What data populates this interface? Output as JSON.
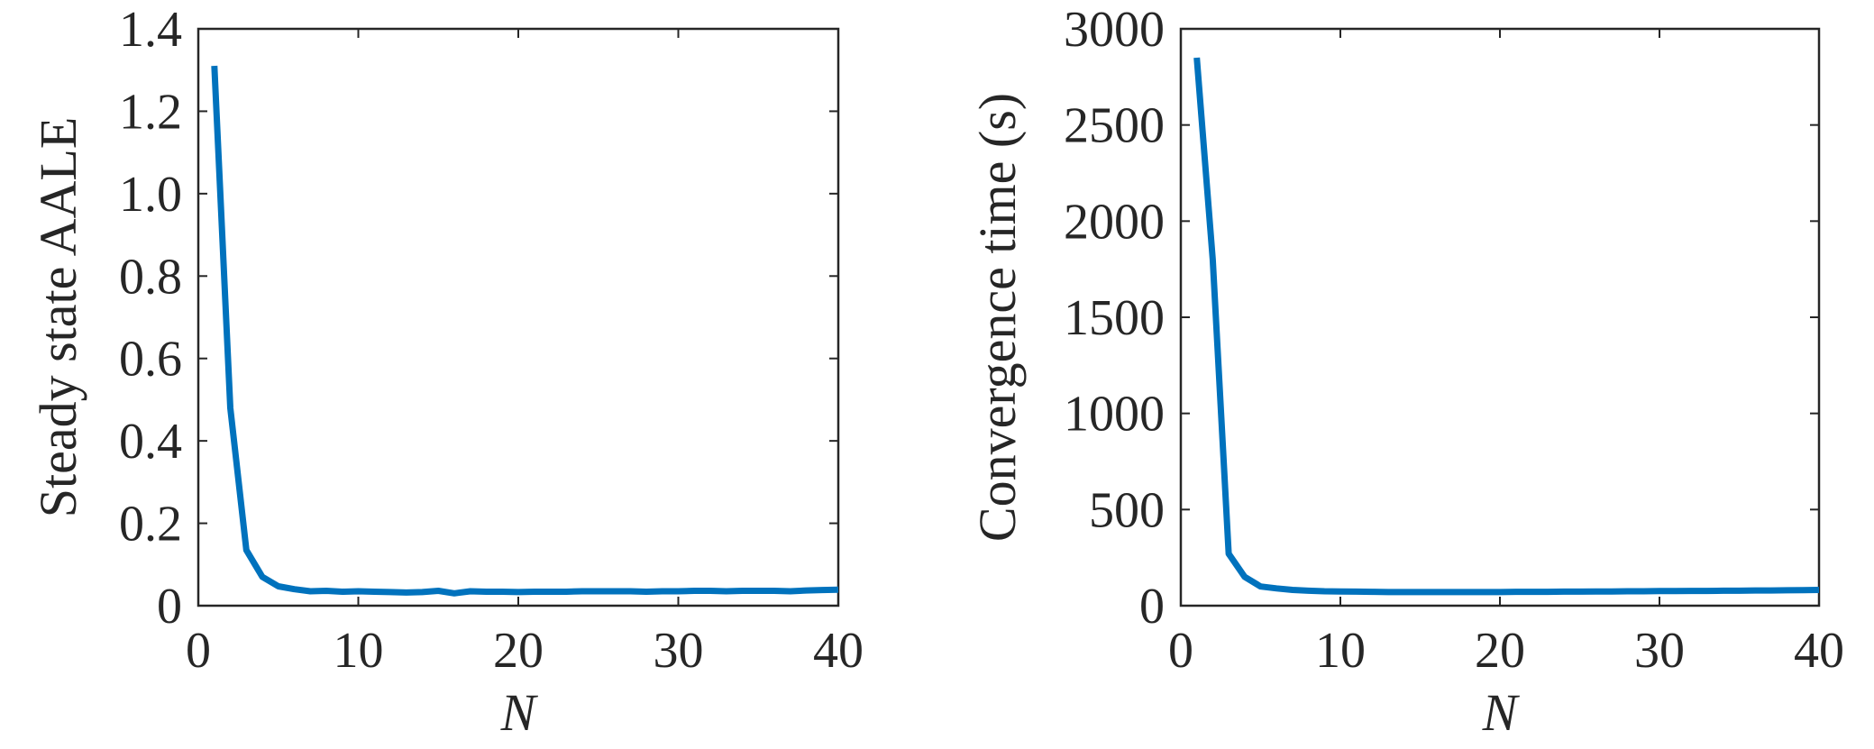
{
  "chart_data": [
    {
      "type": "line",
      "title": "",
      "xlabel": "N",
      "ylabel": "Steady state AALE",
      "xlim": [
        0,
        40
      ],
      "ylim": [
        0,
        1.4
      ],
      "xticks": [
        0,
        10,
        20,
        30,
        40
      ],
      "xtick_labels": [
        "0",
        "10",
        "20",
        "30",
        "40"
      ],
      "yticks": [
        0,
        0.2,
        0.4,
        0.6,
        0.8,
        1.0,
        1.2,
        1.4
      ],
      "ytick_labels": [
        "0",
        "0.2",
        "0.4",
        "0.6",
        "0.8",
        "1.0",
        "1.2",
        "1.4"
      ],
      "grid": false,
      "line_color": "#0072BD",
      "series": [
        {
          "x": [
            1,
            2,
            3,
            4,
            5,
            6,
            7,
            8,
            9,
            10,
            11,
            12,
            13,
            14,
            15,
            16,
            17,
            18,
            19,
            20,
            21,
            22,
            23,
            24,
            25,
            26,
            27,
            28,
            29,
            30,
            31,
            32,
            33,
            34,
            35,
            36,
            37,
            38,
            39,
            40
          ],
          "y": [
            1.31,
            0.48,
            0.135,
            0.07,
            0.047,
            0.04,
            0.035,
            0.036,
            0.034,
            0.035,
            0.034,
            0.033,
            0.032,
            0.033,
            0.036,
            0.03,
            0.035,
            0.034,
            0.034,
            0.033,
            0.034,
            0.034,
            0.034,
            0.035,
            0.035,
            0.035,
            0.035,
            0.034,
            0.035,
            0.035,
            0.036,
            0.036,
            0.035,
            0.036,
            0.036,
            0.036,
            0.035,
            0.037,
            0.038,
            0.039
          ]
        }
      ]
    },
    {
      "type": "line",
      "title": "",
      "xlabel": "N",
      "ylabel": "Convergence time (s)",
      "xlim": [
        0,
        40
      ],
      "ylim": [
        0,
        3000
      ],
      "xticks": [
        0,
        10,
        20,
        30,
        40
      ],
      "xtick_labels": [
        "0",
        "10",
        "20",
        "30",
        "40"
      ],
      "yticks": [
        0,
        500,
        1000,
        1500,
        2000,
        2500,
        3000
      ],
      "ytick_labels": [
        "0",
        "500",
        "1000",
        "1500",
        "2000",
        "2500",
        "3000"
      ],
      "grid": false,
      "line_color": "#0072BD",
      "series": [
        {
          "x": [
            1,
            2,
            3,
            4,
            5,
            6,
            7,
            8,
            9,
            10,
            11,
            12,
            13,
            14,
            15,
            16,
            17,
            18,
            19,
            20,
            21,
            22,
            23,
            24,
            25,
            26,
            27,
            28,
            29,
            30,
            31,
            32,
            33,
            34,
            35,
            36,
            37,
            38,
            39,
            40
          ],
          "y": [
            2850,
            1800,
            270,
            150,
            100,
            90,
            82,
            78,
            75,
            74,
            73,
            72,
            71,
            71,
            71,
            71,
            71,
            71,
            71,
            71,
            72,
            72,
            72,
            73,
            73,
            74,
            74,
            75,
            75,
            76,
            76,
            77,
            77,
            78,
            78,
            79,
            79,
            80,
            81,
            82
          ]
        }
      ]
    }
  ]
}
